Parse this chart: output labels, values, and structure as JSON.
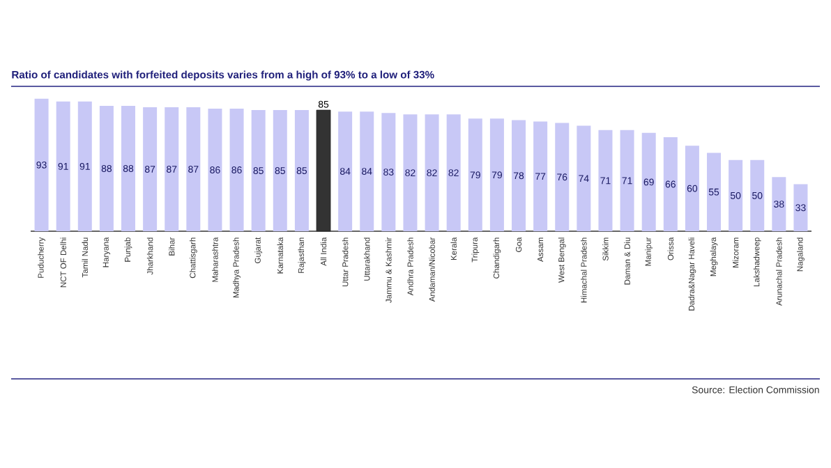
{
  "chart_data": {
    "type": "bar",
    "title": "Ratio of candidates with forfeited deposits varies from a high of 93% to a low of 33%",
    "categories": [
      "Puducherry",
      "NCT OF Delhi",
      "Tamil Nadu",
      "Haryana",
      "Punjab",
      "Jharkhand",
      "Bihar",
      "Chattisgarh",
      "Maharashtra",
      "Madhya Pradesh",
      "Gujarat",
      "Karnataka",
      "Rajasthan",
      "All India",
      "Uttar Pradesh",
      "Uttarakhand",
      "Jammu & Kashmir",
      "Andhra Pradesh",
      "Andaman/Nicobar",
      "Kerala",
      "Tripura",
      "Chandigarh",
      "Goa",
      "Assam",
      "West Bengal",
      "Himachal Pradesh",
      "Sikkim",
      "Daman & Diu",
      "Manipur",
      "Orissa",
      "Dadra&Nagar Haveli",
      "Meghalaya",
      "Mizoram",
      "Lakshadweep",
      "Arunachal Pradesh",
      "Nagaland"
    ],
    "values": [
      93,
      91,
      91,
      88,
      88,
      87,
      87,
      87,
      86,
      86,
      85,
      85,
      85,
      85,
      84,
      84,
      83,
      82,
      82,
      82,
      79,
      79,
      78,
      77,
      76,
      74,
      71,
      71,
      69,
      66,
      60,
      55,
      50,
      50,
      38,
      33
    ],
    "colors": [
      "#c8c8f6",
      "#c8c8f6",
      "#c8c8f6",
      "#c8c8f6",
      "#c8c8f6",
      "#c8c8f6",
      "#c8c8f6",
      "#c8c8f6",
      "#c8c8f6",
      "#c8c8f6",
      "#c8c8f6",
      "#c8c8f6",
      "#c8c8f6",
      "#333333",
      "#c8c8f6",
      "#c8c8f6",
      "#c8c8f6",
      "#c8c8f6",
      "#c8c8f6",
      "#c8c8f6",
      "#c8c8f6",
      "#c8c8f6",
      "#c8c8f6",
      "#c8c8f6",
      "#c8c8f6",
      "#c8c8f6",
      "#c8c8f6",
      "#c8c8f6",
      "#c8c8f6",
      "#c8c8f6",
      "#c8c8f6",
      "#c8c8f6",
      "#c8c8f6",
      "#c8c8f6",
      "#c8c8f6",
      "#c8c8f6"
    ],
    "data_labels": true,
    "annotations": [
      "Source: Election Commission"
    ]
  }
}
